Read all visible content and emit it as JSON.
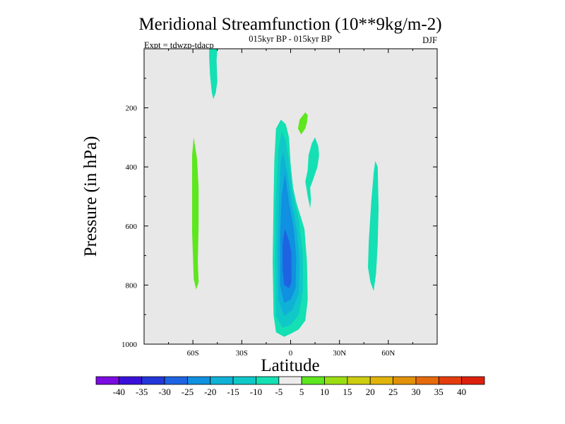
{
  "chart_data": {
    "type": "heatmap",
    "title": "Meridional Streamfunction (10**9kg/m-2)",
    "subtitle": "015kyr BP - 015kyr BP",
    "left_note": "Expt = tdwzp-tdacp",
    "right_note": "DJF",
    "xlabel": "Latitude",
    "ylabel": "Pressure (in hPa)",
    "xlim": [
      -90,
      90
    ],
    "ylim": [
      0,
      1000
    ],
    "y_inverted": true,
    "x_ticks": [
      {
        "value": -60,
        "label": "60S"
      },
      {
        "value": -30,
        "label": "30S"
      },
      {
        "value": 0,
        "label": "0"
      },
      {
        "value": 30,
        "label": "30N"
      },
      {
        "value": 60,
        "label": "60N"
      }
    ],
    "y_ticks": [
      {
        "value": 200,
        "label": "200"
      },
      {
        "value": 400,
        "label": "400"
      },
      {
        "value": 600,
        "label": "600"
      },
      {
        "value": 800,
        "label": "800"
      },
      {
        "value": 1000,
        "label": "1000"
      }
    ],
    "background_color": "#e8e8e8",
    "colorbar": {
      "levels": [
        -40,
        -35,
        -30,
        -25,
        -20,
        -15,
        -10,
        -5,
        5,
        10,
        15,
        20,
        25,
        30,
        35,
        40
      ],
      "colors": [
        "#7b0be0",
        "#3a10d8",
        "#2336d8",
        "#1e64e2",
        "#1090e0",
        "#0fb2d6",
        "#10c8c8",
        "#14e0b4",
        "#ececec",
        "#5ee61e",
        "#9ade12",
        "#cccc10",
        "#e0b40a",
        "#e2920a",
        "#e66a0a",
        "#e43c0c",
        "#dd200e"
      ]
    },
    "contour_regions": [
      {
        "name": "polar-upper-south",
        "band": "-5 to -10",
        "color": "#14e0b4",
        "points": [
          [
            -50,
            0
          ],
          [
            -45,
            0
          ],
          [
            -45.5,
            40
          ],
          [
            -45,
            110
          ],
          [
            -46,
            150
          ],
          [
            -47.5,
            170
          ],
          [
            -48.5,
            145
          ],
          [
            -49.5,
            90
          ],
          [
            -50,
            30
          ]
        ]
      },
      {
        "name": "southern-midlat-positive",
        "band": "5 to 10",
        "color": "#5ee61e",
        "points": [
          [
            -59.5,
            300
          ],
          [
            -57.5,
            370
          ],
          [
            -56.5,
            470
          ],
          [
            -56.5,
            600
          ],
          [
            -57,
            720
          ],
          [
            -56.5,
            790
          ],
          [
            -58,
            815
          ],
          [
            -59.5,
            780
          ],
          [
            -60.5,
            620
          ],
          [
            -60.5,
            450
          ],
          [
            -60.5,
            360
          ]
        ]
      },
      {
        "name": "hadley-outer",
        "band": "-5 to -10",
        "color": "#14e0b4",
        "points": [
          [
            -9,
            270
          ],
          [
            -6,
            240
          ],
          [
            -3,
            255
          ],
          [
            -1,
            300
          ],
          [
            0,
            390
          ],
          [
            1.5,
            470
          ],
          [
            3.5,
            520
          ],
          [
            8.5,
            610
          ],
          [
            10,
            720
          ],
          [
            10.5,
            850
          ],
          [
            9,
            920
          ],
          [
            5,
            950
          ],
          [
            0,
            965
          ],
          [
            -4,
            975
          ],
          [
            -9,
            960
          ],
          [
            -10.5,
            900
          ],
          [
            -11,
            720
          ],
          [
            -10.5,
            520
          ],
          [
            -10,
            380
          ]
        ]
      },
      {
        "name": "hadley-band-10",
        "band": "-10 to -15",
        "color": "#10c8c8",
        "points": [
          [
            -5.5,
            280
          ],
          [
            -3,
            310
          ],
          [
            -1,
            380
          ],
          [
            1,
            480
          ],
          [
            5,
            580
          ],
          [
            7.5,
            700
          ],
          [
            7.5,
            820
          ],
          [
            5,
            900
          ],
          [
            0,
            935
          ],
          [
            -5,
            945
          ],
          [
            -9,
            905
          ],
          [
            -9.5,
            720
          ],
          [
            -9,
            500
          ],
          [
            -7.5,
            340
          ]
        ]
      },
      {
        "name": "hadley-band-15",
        "band": "-15 to -20",
        "color": "#0fb2d6",
        "points": [
          [
            -4.5,
            350
          ],
          [
            -2,
            420
          ],
          [
            1,
            530
          ],
          [
            4,
            620
          ],
          [
            5.5,
            720
          ],
          [
            5,
            830
          ],
          [
            1,
            885
          ],
          [
            -4,
            905
          ],
          [
            -7.5,
            850
          ],
          [
            -8,
            680
          ],
          [
            -7,
            480
          ],
          [
            -6,
            380
          ]
        ]
      },
      {
        "name": "hadley-band-20",
        "band": "-20 to -25",
        "color": "#1090e0",
        "points": [
          [
            -3.5,
            420
          ],
          [
            -1,
            520
          ],
          [
            2,
            610
          ],
          [
            3.5,
            710
          ],
          [
            3,
            810
          ],
          [
            0,
            850
          ],
          [
            -4,
            860
          ],
          [
            -6.5,
            800
          ],
          [
            -6.5,
            640
          ],
          [
            -5.5,
            500
          ]
        ]
      },
      {
        "name": "hadley-core",
        "band": "-25 to -30",
        "color": "#1e64e2",
        "points": [
          [
            -3.5,
            610
          ],
          [
            -1,
            650
          ],
          [
            0.5,
            690
          ],
          [
            0.5,
            790
          ],
          [
            -1,
            810
          ],
          [
            -4,
            800
          ],
          [
            -5,
            740
          ],
          [
            -5,
            660
          ]
        ]
      },
      {
        "name": "hadley-upper-north",
        "band": "-5 to -10",
        "color": "#14e0b4",
        "points": [
          [
            17,
            330
          ],
          [
            15,
            300
          ],
          [
            13,
            320
          ],
          [
            11,
            360
          ],
          [
            10.5,
            410
          ],
          [
            9,
            450
          ],
          [
            10.5,
            500
          ],
          [
            12,
            540
          ],
          [
            12.5,
            510
          ],
          [
            12,
            470
          ],
          [
            14,
            440
          ],
          [
            16.5,
            400
          ],
          [
            17.5,
            360
          ]
        ]
      },
      {
        "name": "tropical-upper-positive",
        "band": "5 to 10",
        "color": "#5ee61e",
        "points": [
          [
            9,
            215
          ],
          [
            10.5,
            225
          ],
          [
            10,
            250
          ],
          [
            9,
            270
          ],
          [
            6.5,
            290
          ],
          [
            4.5,
            270
          ],
          [
            5.5,
            240
          ]
        ]
      },
      {
        "name": "northern-midlat",
        "band": "-5 to -10",
        "color": "#14e0b4",
        "points": [
          [
            52,
            380
          ],
          [
            53.5,
            400
          ],
          [
            54,
            540
          ],
          [
            53.5,
            660
          ],
          [
            52.5,
            760
          ],
          [
            51,
            820
          ],
          [
            49,
            790
          ],
          [
            47.5,
            740
          ],
          [
            48,
            650
          ],
          [
            49.5,
            520
          ],
          [
            51,
            420
          ]
        ]
      }
    ]
  }
}
